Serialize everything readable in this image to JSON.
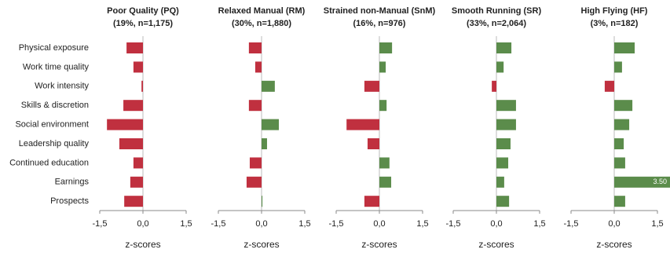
{
  "chart_data": [
    {
      "type": "bar",
      "orientation": "horizontal",
      "title": "Poor Quality (PQ)",
      "subtitle": "(19%, n=1,175)",
      "categories": [
        "Physical exposure",
        "Work time quality",
        "Work intensity",
        "Skills & discretion",
        "Social environment",
        "Leadership quality",
        "Continued education",
        "Earnings",
        "Prospects"
      ],
      "values": [
        -0.57,
        -0.33,
        -0.05,
        -0.68,
        -1.25,
        -0.82,
        -0.33,
        -0.44,
        -0.65
      ],
      "color_negative": "#c0303f",
      "color_positive": "#5b8c4b",
      "xlim": [
        -1.5,
        1.5
      ],
      "xticks": [
        {
          "value": -1.5,
          "label": "-1,5"
        },
        {
          "value": 0,
          "label": "0,0"
        },
        {
          "value": 1.5,
          "label": "1,5"
        }
      ],
      "xlabel": "z-scores"
    },
    {
      "type": "bar",
      "orientation": "horizontal",
      "title": "Relaxed Manual (RM)",
      "subtitle": "(30%, n=1,880)",
      "values": [
        -0.44,
        -0.22,
        0.46,
        -0.44,
        0.6,
        0.19,
        -0.41,
        -0.52,
        0.03
      ],
      "color_negative": "#c0303f",
      "color_positive": "#5b8c4b",
      "xlim": [
        -1.5,
        1.5
      ],
      "xticks": [
        {
          "value": -1.5,
          "label": "-1,5"
        },
        {
          "value": 0,
          "label": "0,0"
        },
        {
          "value": 1.5,
          "label": "1,5"
        }
      ],
      "xlabel": "z-scores"
    },
    {
      "type": "bar",
      "orientation": "horizontal",
      "title": "Strained non-Manual (SnM)",
      "subtitle": "(16%, n=976)",
      "values": [
        0.44,
        0.22,
        -0.52,
        0.25,
        -1.14,
        -0.41,
        0.35,
        0.41,
        -0.52
      ],
      "color_negative": "#c0303f",
      "color_positive": "#5b8c4b",
      "xlim": [
        -1.5,
        1.5
      ],
      "xticks": [
        {
          "value": -1.5,
          "label": "-1,5"
        },
        {
          "value": 0,
          "label": "0,0"
        },
        {
          "value": 1.5,
          "label": "1,5"
        }
      ],
      "xlabel": "z-scores"
    },
    {
      "type": "bar",
      "orientation": "horizontal",
      "title": "Smooth Running (SR)",
      "subtitle": "(33%, n=2,064)",
      "values": [
        0.52,
        0.25,
        -0.16,
        0.68,
        0.68,
        0.49,
        0.41,
        0.27,
        0.44
      ],
      "color_negative": "#c0303f",
      "color_positive": "#5b8c4b",
      "xlim": [
        -1.5,
        1.5
      ],
      "xticks": [
        {
          "value": -1.5,
          "label": "-1,5"
        },
        {
          "value": 0,
          "label": "0,0"
        },
        {
          "value": 1.5,
          "label": "1,5"
        }
      ],
      "xlabel": "z-scores"
    },
    {
      "type": "bar",
      "orientation": "horizontal",
      "title": "High Flying (HF)",
      "subtitle": "(3%, n=182)",
      "values": [
        0.71,
        0.27,
        -0.33,
        0.63,
        0.52,
        0.33,
        0.38,
        3.5,
        0.38
      ],
      "value_labels": [
        null,
        null,
        null,
        null,
        null,
        null,
        null,
        "3.50",
        null
      ],
      "color_negative": "#c0303f",
      "color_positive": "#5b8c4b",
      "xlim": [
        -1.5,
        1.5
      ],
      "xticks": [
        {
          "value": -1.5,
          "label": "-1,5"
        },
        {
          "value": 0,
          "label": "0,0"
        },
        {
          "value": 1.5,
          "label": "1,5"
        }
      ],
      "xlabel": "z-scores"
    }
  ]
}
